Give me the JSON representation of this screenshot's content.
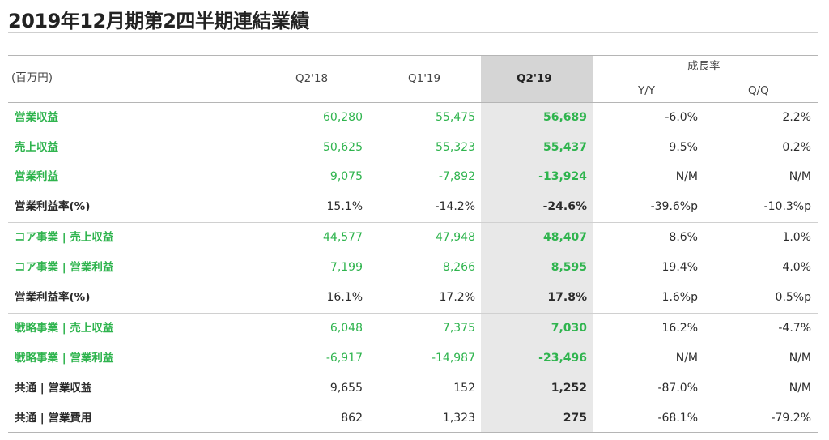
{
  "title": "2019年12月期第2四半期連結業績",
  "header": {
    "unit": "(百万円)",
    "q2_18": "Q2'18",
    "q1_19": "Q1'19",
    "q2_19": "Q2'19",
    "growth": "成長率",
    "yy": "Y/Y",
    "qq": "Q/Q"
  },
  "rows": [
    {
      "label": "営業収益",
      "q2_18": "60,280",
      "q1_19": "55,475",
      "q2_19": "56,689",
      "yy": "-6.0%",
      "qq": "2.2%",
      "color": "green"
    },
    {
      "label": "売上収益",
      "q2_18": "50,625",
      "q1_19": "55,323",
      "q2_19": "55,437",
      "yy": "9.5%",
      "qq": "0.2%",
      "color": "green"
    },
    {
      "label": "営業利益",
      "q2_18": "9,075",
      "q1_19": "-7,892",
      "q2_19": "-13,924",
      "yy": "N/M",
      "qq": "N/M",
      "color": "green"
    },
    {
      "label": "営業利益率(%)",
      "q2_18": "15.1%",
      "q1_19": "-14.2%",
      "q2_19": "-24.6%",
      "yy": "-39.6%p",
      "qq": "-10.3%p",
      "color": "dark"
    },
    {
      "label": "コア事業 | 売上収益",
      "q2_18": "44,577",
      "q1_19": "47,948",
      "q2_19": "48,407",
      "yy": "8.6%",
      "qq": "1.0%",
      "color": "green"
    },
    {
      "label": "コア事業 | 営業利益",
      "q2_18": "7,199",
      "q1_19": "8,266",
      "q2_19": "8,595",
      "yy": "19.4%",
      "qq": "4.0%",
      "color": "green"
    },
    {
      "label": "営業利益率(%)",
      "q2_18": "16.1%",
      "q1_19": "17.2%",
      "q2_19": "17.8%",
      "yy": "1.6%p",
      "qq": "0.5%p",
      "color": "dark"
    },
    {
      "label": "戦略事業 | 売上収益",
      "q2_18": "6,048",
      "q1_19": "7,375",
      "q2_19": "7,030",
      "yy": "16.2%",
      "qq": "-4.7%",
      "color": "green"
    },
    {
      "label": "戦略事業 | 営業利益",
      "q2_18": "-6,917",
      "q1_19": "-14,987",
      "q2_19": "-23,496",
      "yy": "N/M",
      "qq": "N/M",
      "color": "green"
    },
    {
      "label": "共通 | 営業収益",
      "q2_18": "9,655",
      "q1_19": "152",
      "q2_19": "1,252",
      "yy": "-87.0%",
      "qq": "N/M",
      "color": "dark"
    },
    {
      "label": "共通 | 営業費用",
      "q2_18": "862",
      "q1_19": "1,323",
      "q2_19": "275",
      "yy": "-68.1%",
      "qq": "-79.2%",
      "color": "dark"
    }
  ]
}
